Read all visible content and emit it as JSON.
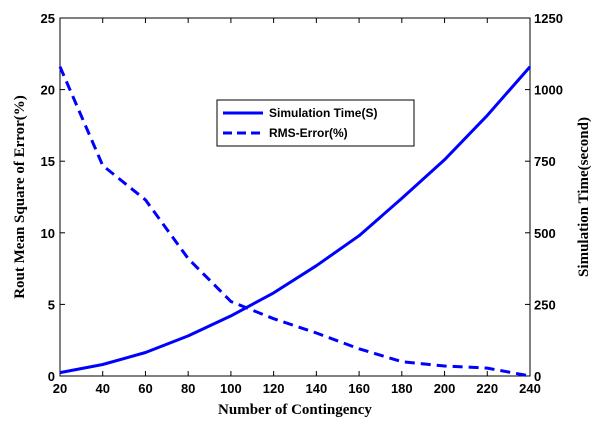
{
  "chart_data": {
    "type": "line",
    "xlabel": "Number of Contingency",
    "ylabel_left": "Rout Mean Square of Error(%)",
    "ylabel_right": "Simulation Time(second)",
    "x": [
      20,
      40,
      60,
      80,
      100,
      120,
      140,
      160,
      180,
      200,
      220,
      240
    ],
    "xlim": [
      20,
      240
    ],
    "ylim_left": [
      0,
      25
    ],
    "ylim_right": [
      0,
      1250
    ],
    "xticks": [
      "20",
      "40",
      "60",
      "80",
      "100",
      "120",
      "140",
      "160",
      "180",
      "200",
      "220",
      "240"
    ],
    "yticks_left": [
      "0",
      "5",
      "10",
      "15",
      "20",
      "25"
    ],
    "yticks_right": [
      "0",
      "250",
      "500",
      "750",
      "1000",
      "1250"
    ],
    "grid": false,
    "legend_position": "top-center",
    "series": [
      {
        "name": "Simulation Time(S)",
        "axis": "right",
        "style": "solid",
        "color": "#0000ff",
        "values": [
          12,
          40,
          82,
          140,
          210,
          290,
          385,
          490,
          620,
          755,
          910,
          1080
        ]
      },
      {
        "name": "RMS-Error(%)",
        "axis": "left",
        "style": "dashed",
        "color": "#0000ff",
        "values": [
          21.6,
          14.7,
          12.3,
          8.2,
          5.2,
          4.0,
          3.0,
          1.9,
          1.0,
          0.7,
          0.55,
          0.0
        ]
      }
    ]
  }
}
